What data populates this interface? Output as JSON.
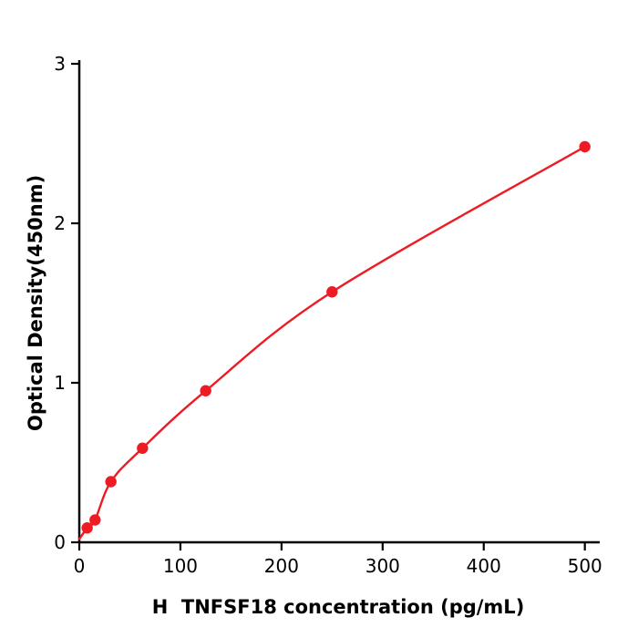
{
  "chart_data": {
    "type": "scatter",
    "title": "",
    "xlabel": "H  TNFSF18 concentration (pg/mL)",
    "ylabel": "Optical Density(450nm)",
    "xlim": [
      0,
      512
    ],
    "ylim": [
      0,
      3
    ],
    "x_ticks": [
      0,
      100,
      200,
      300,
      400,
      500
    ],
    "y_ticks": [
      0,
      1,
      2,
      3
    ],
    "grid": false,
    "legend": "none",
    "color": "#ed1c24",
    "axis_color": "#000000",
    "curve_start": [
      0,
      0.02
    ],
    "points": [
      [
        7.8,
        0.09
      ],
      [
        15.6,
        0.14
      ],
      [
        31.25,
        0.38
      ],
      [
        62.5,
        0.59
      ],
      [
        125,
        0.95
      ],
      [
        250,
        1.57
      ],
      [
        500,
        2.48
      ]
    ]
  }
}
